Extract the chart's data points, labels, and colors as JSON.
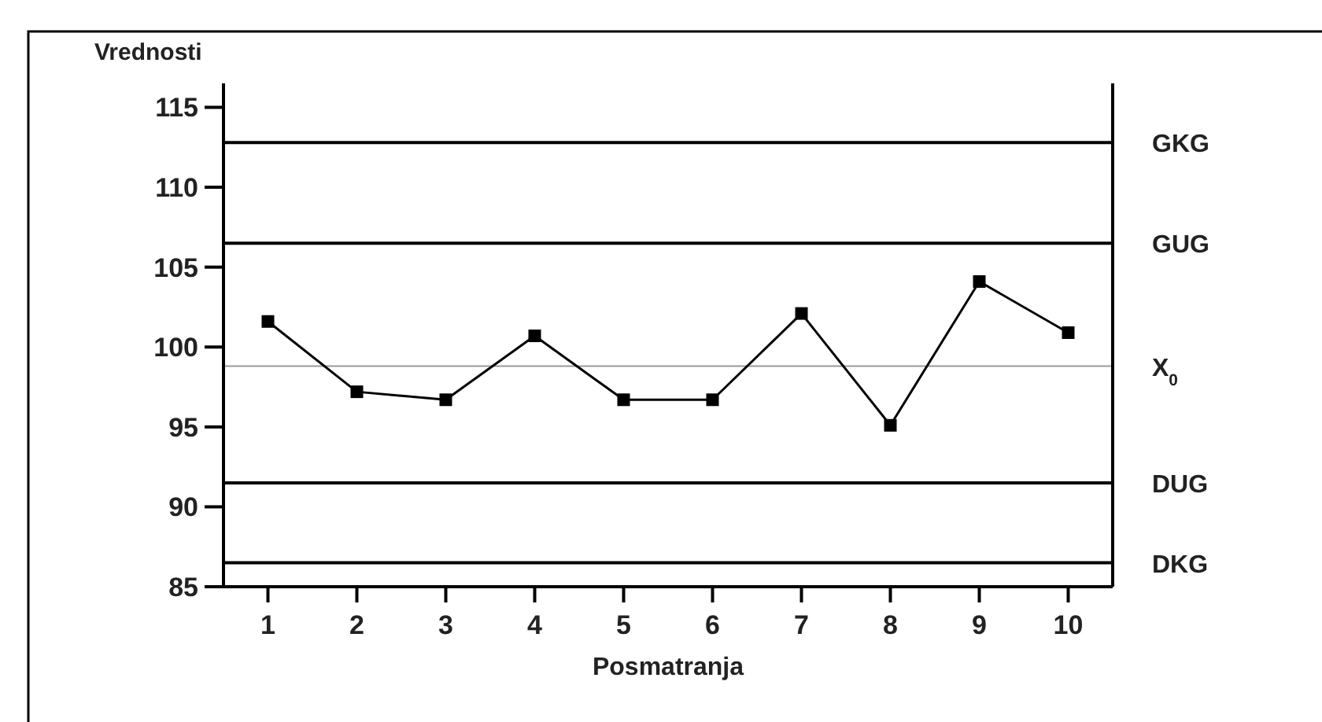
{
  "chart_data": {
    "type": "line",
    "xlabel": "Posmatranja",
    "ylabel": "Vrednosti",
    "x": [
      1,
      2,
      3,
      4,
      5,
      6,
      7,
      8,
      9,
      10
    ],
    "series": [
      {
        "color": "#000000",
        "values": [
          101.6,
          97.2,
          96.7,
          100.7,
          96.7,
          96.7,
          102.1,
          95.1,
          104.1,
          100.9
        ]
      }
    ],
    "xlim": [
      0.5,
      10.5
    ],
    "xticks": [
      1,
      2,
      3,
      4,
      5,
      6,
      7,
      8,
      9,
      10
    ],
    "ylim": [
      85,
      116.5
    ],
    "yticks": [
      85,
      90,
      95,
      100,
      105,
      110,
      115
    ],
    "marker": "square",
    "line_style": "solid",
    "grid": false,
    "ref_lines": [
      {
        "axis": "y",
        "value": 112.8,
        "label": "GKG",
        "color": "#000000"
      },
      {
        "axis": "y",
        "value": 106.5,
        "label": "GUG",
        "color": "#000000"
      },
      {
        "axis": "y",
        "value": 98.8,
        "label": "X$_{0}$",
        "color": "#999999"
      },
      {
        "axis": "y",
        "value": 91.5,
        "label": "DUG",
        "color": "#000000"
      },
      {
        "axis": "y",
        "value": 86.5,
        "label": "DKG",
        "color": "#000000"
      }
    ]
  }
}
